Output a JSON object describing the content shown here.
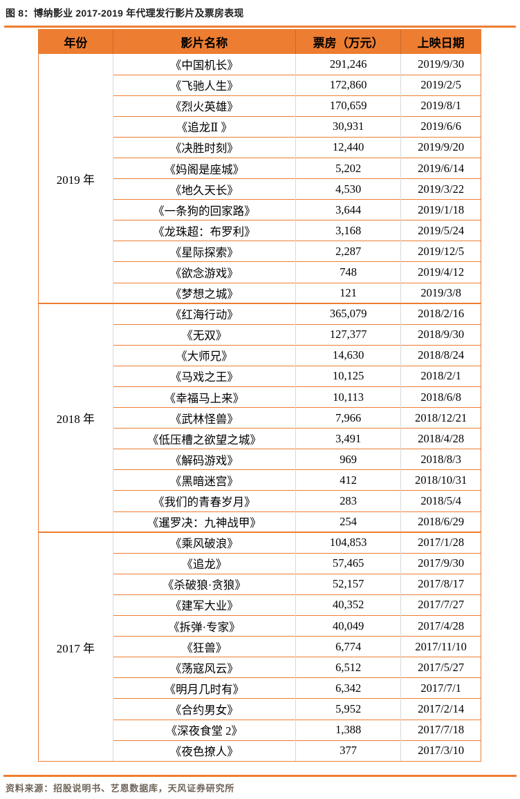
{
  "figure": {
    "title": "图 8：博纳影业 2017-2019 年代理发行影片及票房表现",
    "source": "资料来源：招股说明书、艺恩数据库，天风证券研究所"
  },
  "colors": {
    "accent_orange": "#ED7D31",
    "column_divider_gray": "#D9D9D9",
    "source_text": "#6E6459",
    "title_text": "#1F1F1F"
  },
  "table": {
    "columns": [
      "年份",
      "影片名称",
      "票房（万元）",
      "上映日期"
    ],
    "groups": [
      {
        "year": "2019 年",
        "films": [
          {
            "title": "《中国机长》",
            "box_office": "291,246",
            "date": "2019/9/30"
          },
          {
            "title": "《飞驰人生》",
            "box_office": "172,860",
            "date": "2019/2/5"
          },
          {
            "title": "《烈火英雄》",
            "box_office": "170,659",
            "date": "2019/8/1"
          },
          {
            "title": "《追龙Ⅱ 》",
            "box_office": "30,931",
            "date": "2019/6/6"
          },
          {
            "title": "《决胜时刻》",
            "box_office": "12,440",
            "date": "2019/9/20"
          },
          {
            "title": "《妈阁是座城》",
            "box_office": "5,202",
            "date": "2019/6/14"
          },
          {
            "title": "《地久天长》",
            "box_office": "4,530",
            "date": "2019/3/22"
          },
          {
            "title": "《一条狗的回家路》",
            "box_office": "3,644",
            "date": "2019/1/18"
          },
          {
            "title": "《龙珠超：布罗利》",
            "box_office": "3,168",
            "date": "2019/5/24"
          },
          {
            "title": "《星际探索》",
            "box_office": "2,287",
            "date": "2019/12/5"
          },
          {
            "title": "《欲念游戏》",
            "box_office": "748",
            "date": "2019/4/12"
          },
          {
            "title": "《梦想之城》",
            "box_office": "121",
            "date": "2019/3/8"
          }
        ]
      },
      {
        "year": "2018 年",
        "films": [
          {
            "title": "《红海行动》",
            "box_office": "365,079",
            "date": "2018/2/16"
          },
          {
            "title": "《无双》",
            "box_office": "127,377",
            "date": "2018/9/30"
          },
          {
            "title": "《大师兄》",
            "box_office": "14,630",
            "date": "2018/8/24"
          },
          {
            "title": "《马戏之王》",
            "box_office": "10,125",
            "date": "2018/2/1"
          },
          {
            "title": "《幸福马上来》",
            "box_office": "10,113",
            "date": "2018/6/8"
          },
          {
            "title": "《武林怪兽》",
            "box_office": "7,966",
            "date": "2018/12/21"
          },
          {
            "title": "《低压槽之欲望之城》",
            "box_office": "3,491",
            "date": "2018/4/28"
          },
          {
            "title": "《解码游戏》",
            "box_office": "969",
            "date": "2018/8/3"
          },
          {
            "title": "《黑暗迷宫》",
            "box_office": "412",
            "date": "2018/10/31"
          },
          {
            "title": "《我们的青春岁月》",
            "box_office": "283",
            "date": "2018/5/4"
          },
          {
            "title": "《暹罗决：九神战甲》",
            "box_office": "254",
            "date": "2018/6/29"
          }
        ]
      },
      {
        "year": "2017 年",
        "films": [
          {
            "title": "《乘风破浪》",
            "box_office": "104,853",
            "date": "2017/1/28"
          },
          {
            "title": "《追龙》",
            "box_office": "57,465",
            "date": "2017/9/30"
          },
          {
            "title": "《杀破狼·贪狼》",
            "box_office": "52,157",
            "date": "2017/8/17"
          },
          {
            "title": "《建军大业》",
            "box_office": "40,352",
            "date": "2017/7/27"
          },
          {
            "title": "《拆弹·专家》",
            "box_office": "40,049",
            "date": "2017/4/28"
          },
          {
            "title": "《狂兽》",
            "box_office": "6,774",
            "date": "2017/11/10"
          },
          {
            "title": "《荡寇风云》",
            "box_office": "6,512",
            "date": "2017/5/27"
          },
          {
            "title": "《明月几时有》",
            "box_office": "6,342",
            "date": "2017/7/1"
          },
          {
            "title": "《合约男女》",
            "box_office": "5,952",
            "date": "2017/2/14"
          },
          {
            "title": "《深夜食堂 2》",
            "box_office": "1,388",
            "date": "2017/7/18"
          },
          {
            "title": "《夜色撩人》",
            "box_office": "377",
            "date": "2017/3/10"
          }
        ]
      }
    ]
  }
}
